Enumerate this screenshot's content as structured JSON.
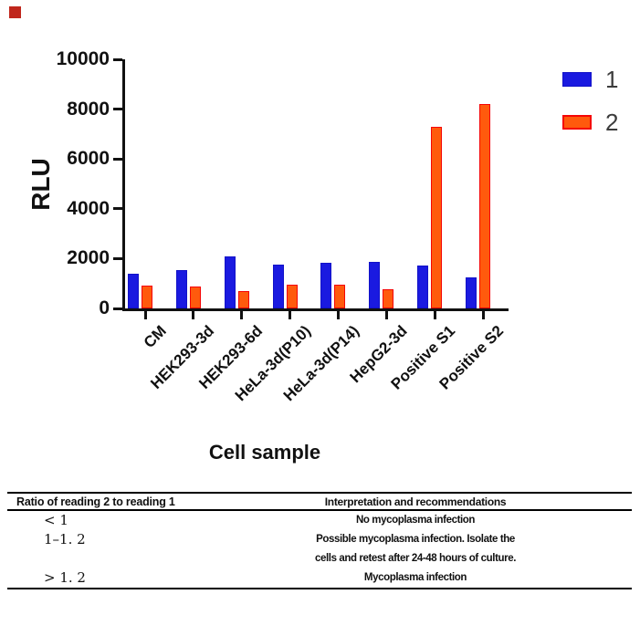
{
  "corner_marker_color": "#c0261c",
  "chart_data": {
    "type": "bar",
    "title": "",
    "xlabel": "Cell sample",
    "ylabel": "RLU",
    "categories": [
      "CM",
      "HEK293-3d",
      "HEK293-6d",
      "HeLa-3d(P10)",
      "HeLa-3d(P14)",
      "HepG2-3d",
      "Positive S1",
      "Positive S2"
    ],
    "series": [
      {
        "name": "1",
        "color": "#1a1ae0",
        "border": "#1212c8",
        "values": [
          1400,
          1550,
          2100,
          1750,
          1840,
          1880,
          1730,
          1250
        ]
      },
      {
        "name": "2",
        "color": "#ff5a0d",
        "border": "#f50505",
        "values": [
          900,
          880,
          700,
          950,
          950,
          780,
          7300,
          8200
        ]
      }
    ],
    "ylim": [
      0,
      10000
    ],
    "yticks": [
      0,
      2000,
      4000,
      6000,
      8000,
      10000
    ],
    "legend_position": "top-right",
    "grid": false
  },
  "table": {
    "headers": {
      "ratio": "Ratio of reading 2 to reading 1",
      "interpretation": "Interpretation and recommendations"
    },
    "rows": [
      {
        "ratio": "< 1",
        "line1": "No mycoplasma infection",
        "line2": ""
      },
      {
        "ratio": "1–1. 2",
        "line1": "Possible mycoplasma infection. Isolate the",
        "line2": "cells and retest after 24-48 hours of culture."
      },
      {
        "ratio": "> 1. 2",
        "line1": "Mycoplasma infection",
        "line2": ""
      }
    ]
  }
}
